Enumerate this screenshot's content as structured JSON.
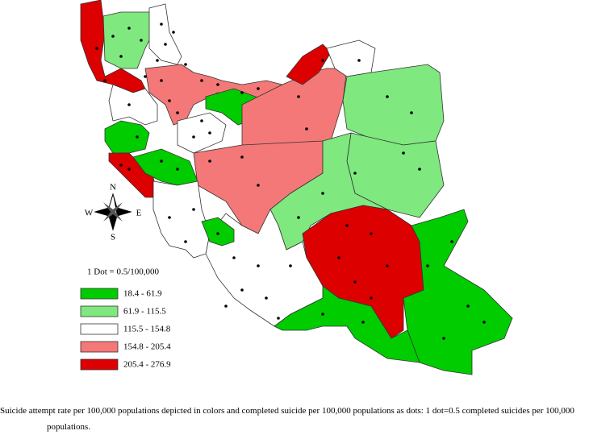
{
  "compass": {
    "n": "N",
    "e": "E",
    "s": "S",
    "w": "W"
  },
  "dot_scale": "1 Dot = 0.5/100,000",
  "legend": [
    {
      "label": "18.4 - 61.9",
      "color": "#00cc00"
    },
    {
      "label": "61.9 - 115.5",
      "color": "#7fe87f"
    },
    {
      "label": "115.5 - 154.8",
      "color": "#ffffff"
    },
    {
      "label": "154.8 - 205.4",
      "color": "#f47878"
    },
    {
      "label": "205.4 - 276.9",
      "color": "#dd0000"
    }
  ],
  "caption": "Suicide attempt rate per 100,000 populations depicted in colors and completed suicide per 100,000 populations as dots: 1 dot=0.5 completed suicides per 100,000 populations."
}
